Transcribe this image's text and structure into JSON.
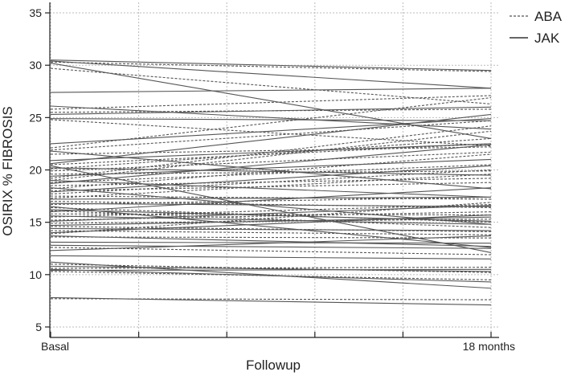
{
  "chart_data": {
    "type": "line",
    "xlabel": "Followup",
    "ylabel": "OSIRIX % FIBROSIS",
    "x": [
      "Basal",
      "18 months"
    ],
    "ylim": [
      4,
      36
    ],
    "yticks": [
      5,
      10,
      15,
      20,
      25,
      30,
      35
    ],
    "grid": true,
    "legend_position": "top-right",
    "colors": {
      "ABA": "#555555",
      "JAK": "#555555"
    },
    "series": [
      {
        "name": "ABA",
        "style": "dashed",
        "lines": [
          [
            30.3,
            29.4
          ],
          [
            29.7,
            26.3
          ],
          [
            25.8,
            27.1
          ],
          [
            25.5,
            25.8
          ],
          [
            24.8,
            22.3
          ],
          [
            22.1,
            26.9
          ],
          [
            21.9,
            24.7
          ],
          [
            21.5,
            22.2
          ],
          [
            20.5,
            22.5
          ],
          [
            20.1,
            23.0
          ],
          [
            19.9,
            21.7
          ],
          [
            19.6,
            19.9
          ],
          [
            19.2,
            24.2
          ],
          [
            19.0,
            23.7
          ],
          [
            18.8,
            20.5
          ],
          [
            18.5,
            19.2
          ],
          [
            18.2,
            21.5
          ],
          [
            18.0,
            18.8
          ],
          [
            17.7,
            20.0
          ],
          [
            17.5,
            17.2
          ],
          [
            17.3,
            19.6
          ],
          [
            17.0,
            16.4
          ],
          [
            16.7,
            17.4
          ],
          [
            16.4,
            15.0
          ],
          [
            16.1,
            14.5
          ],
          [
            15.8,
            15.7
          ],
          [
            15.5,
            16.7
          ],
          [
            15.2,
            16.0
          ],
          [
            14.9,
            15.3
          ],
          [
            14.6,
            14.1
          ],
          [
            14.2,
            13.8
          ],
          [
            13.9,
            16.9
          ],
          [
            13.6,
            13.5
          ],
          [
            12.6,
            11.9
          ],
          [
            11.0,
            10.2
          ],
          [
            10.6,
            10.7
          ],
          [
            10.3,
            9.5
          ],
          [
            7.7,
            7.6
          ]
        ]
      },
      {
        "name": "JAK",
        "style": "solid",
        "lines": [
          [
            30.5,
            29.5
          ],
          [
            30.4,
            27.8
          ],
          [
            30.2,
            23.0
          ],
          [
            27.4,
            27.8
          ],
          [
            26.1,
            23.9
          ],
          [
            25.3,
            26.0
          ],
          [
            24.9,
            24.7
          ],
          [
            22.5,
            24.9
          ],
          [
            21.8,
            18.2
          ],
          [
            20.9,
            22.5
          ],
          [
            20.6,
            25.3
          ],
          [
            20.4,
            12.1
          ],
          [
            20.2,
            19.5
          ],
          [
            19.4,
            21.0
          ],
          [
            19.0,
            17.4
          ],
          [
            18.7,
            22.4
          ],
          [
            18.3,
            14.8
          ],
          [
            17.9,
            20.4
          ],
          [
            17.2,
            17.4
          ],
          [
            16.8,
            16.5
          ],
          [
            16.5,
            12.6
          ],
          [
            16.2,
            15.1
          ],
          [
            16.0,
            18.3
          ],
          [
            15.6,
            14.8
          ],
          [
            15.1,
            16.6
          ],
          [
            14.7,
            15.5
          ],
          [
            14.4,
            14.2
          ],
          [
            14.0,
            15.7
          ],
          [
            13.7,
            12.7
          ],
          [
            13.1,
            13.0
          ],
          [
            12.8,
            12.5
          ],
          [
            12.3,
            13.7
          ],
          [
            11.8,
            11.5
          ],
          [
            11.2,
            8.7
          ],
          [
            10.8,
            10.3
          ],
          [
            10.5,
            9.3
          ],
          [
            10.4,
            10.5
          ],
          [
            7.8,
            7.1
          ]
        ]
      }
    ]
  }
}
